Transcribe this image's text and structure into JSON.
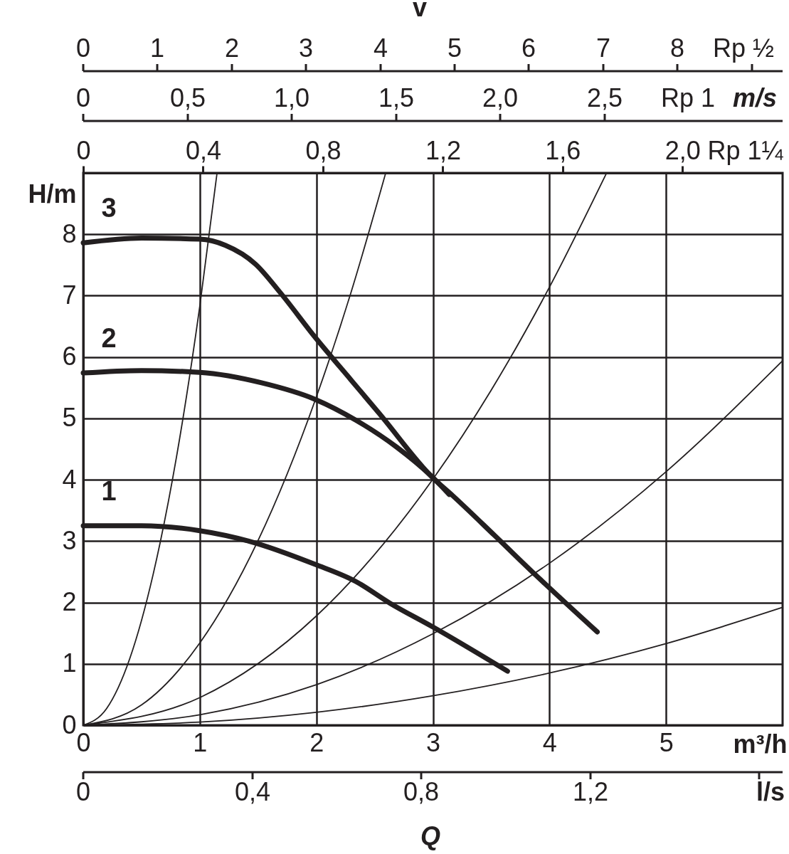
{
  "chart_data": {
    "type": "line",
    "xlabel": "m³/h",
    "ylabel": "H/m",
    "x2label": "Rp 1¼",
    "xlim": [
      0,
      6
    ],
    "xticks": [
      0,
      1,
      2,
      3,
      4,
      5
    ],
    "ylim": [
      0,
      9
    ],
    "yticks": [
      0,
      1,
      2,
      3,
      4,
      5,
      6,
      7,
      8
    ],
    "x2lim": [
      0,
      2.334
    ],
    "x2ticks": [
      0,
      {
        "value": 0.4,
        "label": "0,4"
      },
      {
        "value": 0.8,
        "label": "0,8"
      },
      {
        "value": 1.2,
        "label": "1,2"
      },
      {
        "value": 1.6,
        "label": "1,6"
      },
      {
        "value": 2.0,
        "label": "2,0"
      }
    ],
    "grid": true,
    "annotations": [
      "v",
      "0",
      "1",
      "2",
      "3",
      "4",
      "5",
      "6",
      "7",
      "8",
      "Rp ½",
      "0",
      "0,5",
      "1,0",
      "1,5",
      "2,0",
      "2,5",
      "Rp 1",
      "m/s",
      "0",
      "0,4",
      "0,8",
      "1,2",
      "l/s",
      "Q"
    ],
    "series": [
      {
        "color": "#231f20",
        "x": [
          0,
          0.2,
          0.4,
          0.6,
          0.8,
          1.0,
          1.148
        ],
        "values": [
          0,
          0.27,
          1.09,
          2.46,
          4.37,
          6.83,
          9.0
        ]
      },
      {
        "color": "#231f20",
        "x": [
          0,
          0.5,
          1,
          1.5,
          2,
          2.3,
          2.595
        ],
        "values": [
          0,
          0.33,
          1.34,
          3.01,
          5.35,
          7.07,
          9.0
        ]
      },
      {
        "color": "#231f20",
        "x": [
          0,
          1,
          2,
          3,
          3.5,
          4,
          4.49
        ],
        "values": [
          0,
          0.45,
          1.78,
          4.01,
          5.46,
          7.14,
          9.0
        ]
      },
      {
        "color": "#231f20",
        "x": [
          0,
          1,
          2,
          3,
          4,
          5,
          6
        ],
        "values": [
          0,
          0.17,
          0.66,
          1.49,
          2.64,
          4.13,
          5.94
        ]
      },
      {
        "color": "#231f20",
        "x": [
          0,
          1,
          2,
          3,
          4,
          5,
          6
        ],
        "values": [
          0,
          0.05,
          0.21,
          0.48,
          0.85,
          1.33,
          1.92
        ]
      },
      {
        "name": "1",
        "color": "#231f20",
        "x": [
          0,
          0.5,
          1,
          1.42,
          1.99,
          2.34,
          2.63,
          3.0,
          3.64
        ],
        "values": [
          3.25,
          3.25,
          3.17,
          3.0,
          2.62,
          2.34,
          1.99,
          1.6,
          0.88
        ]
      },
      {
        "name": "2",
        "color": "#231f20",
        "x": [
          0,
          0.5,
          1,
          1.53,
          1.99,
          2.34,
          2.69,
          2.98,
          3.14
        ],
        "values": [
          5.74,
          5.78,
          5.75,
          5.58,
          5.31,
          4.97,
          4.53,
          4.07,
          3.76
        ]
      },
      {
        "name": "3",
        "color": "#231f20",
        "x": [
          0,
          0.5,
          1,
          1.22,
          1.48,
          1.69,
          1.99,
          2.3,
          2.54,
          3.0,
          3.17,
          3.53,
          3.88,
          4.41
        ],
        "values": [
          7.86,
          7.94,
          7.92,
          7.82,
          7.51,
          7.05,
          6.32,
          5.62,
          5.08,
          4.03,
          3.74,
          3.09,
          2.45,
          1.52
        ]
      }
    ]
  }
}
